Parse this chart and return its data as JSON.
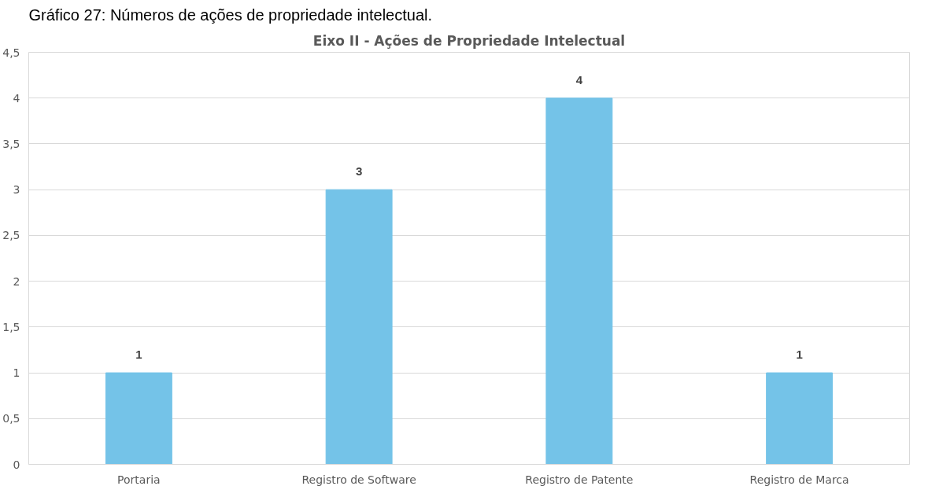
{
  "chart_data": {
    "type": "bar",
    "title": "Eixo II - Ações de Propriedade Intelectual",
    "annotations": [
      "Gráfico 27: Números de ações de propriedade intelectual."
    ],
    "categories": [
      "Portaria",
      "Registro de Software",
      "Registro de Patente",
      "Registro de Marca"
    ],
    "values": [
      1,
      3,
      4,
      1
    ],
    "color": "#74c3e8",
    "ylim": [
      0,
      4.5
    ],
    "yticks": [
      0,
      {
        "value": 0.5,
        "label": "0,5"
      },
      1,
      {
        "value": 1.5,
        "label": "1,5"
      },
      2,
      {
        "value": 2.5,
        "label": "2,5"
      },
      3,
      {
        "value": 3.5,
        "label": "3,5"
      },
      4,
      {
        "value": 4.5,
        "label": "4,5"
      }
    ],
    "grid": "y",
    "data_labels": true
  }
}
